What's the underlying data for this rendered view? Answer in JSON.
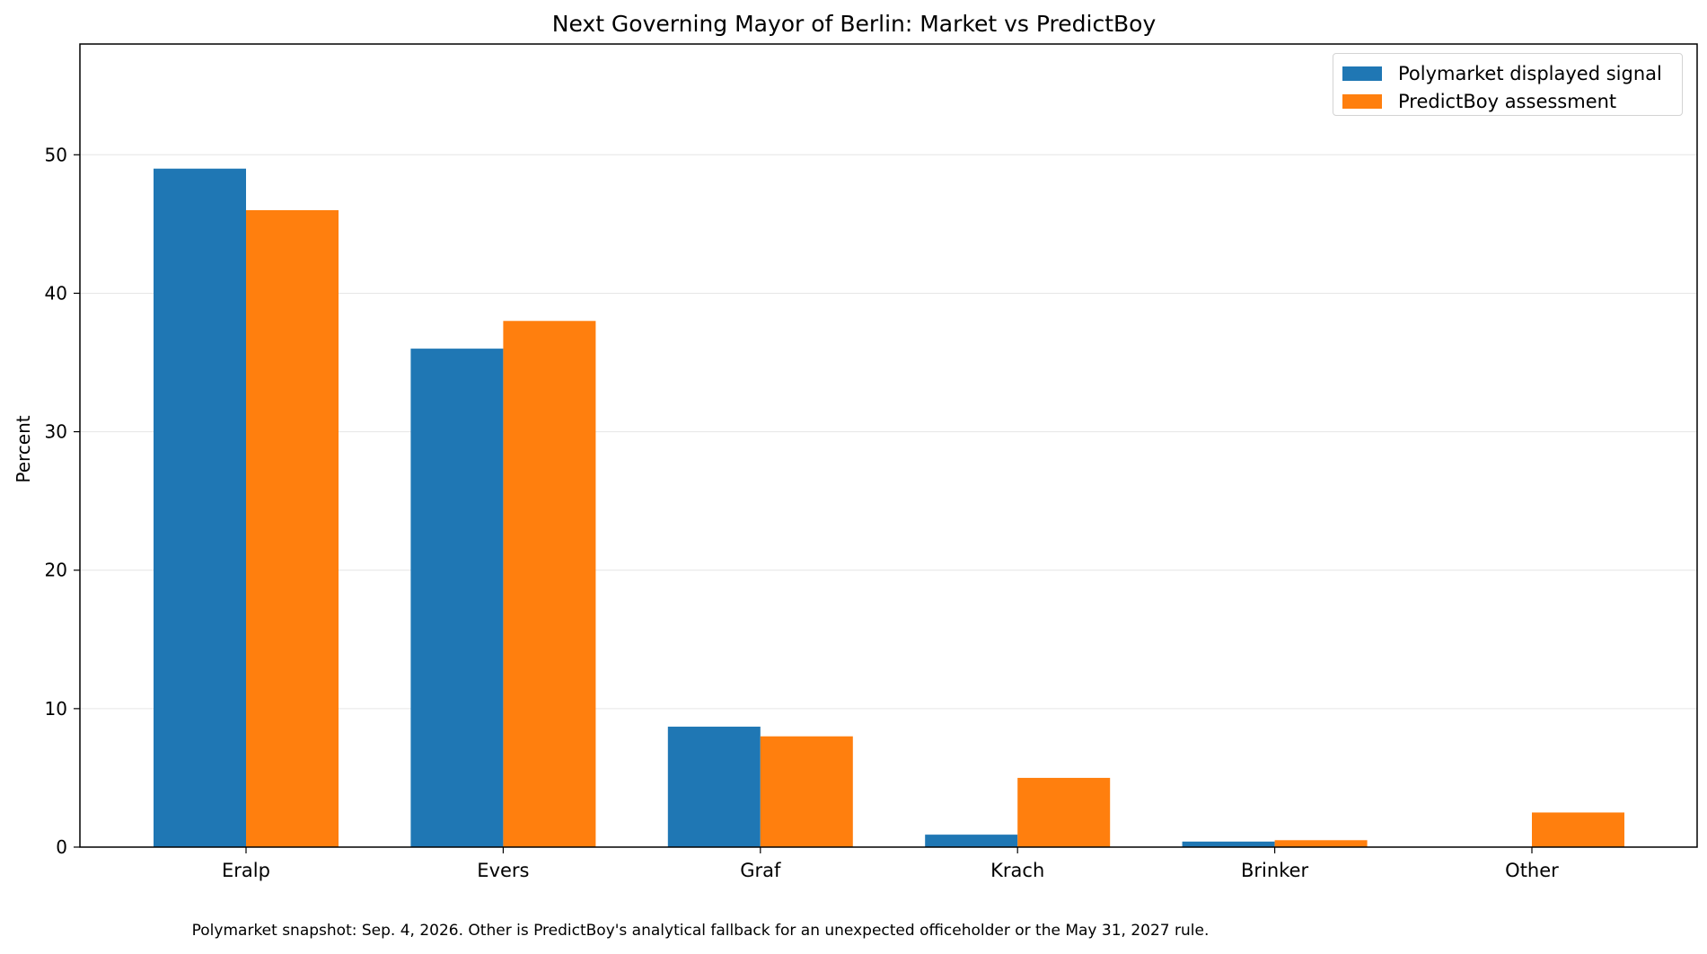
{
  "chart_data": {
    "type": "bar",
    "title": "Next Governing Mayor of Berlin: Market vs PredictBoy",
    "xlabel": "",
    "ylabel": "Percent",
    "categories": [
      "Eralp",
      "Evers",
      "Graf",
      "Krach",
      "Brinker",
      "Other"
    ],
    "series": [
      {
        "name": "Polymarket displayed signal",
        "color": "#1f77b4",
        "values": [
          49,
          36,
          8.7,
          0.9,
          0.4,
          0
        ]
      },
      {
        "name": "PredictBoy assessment",
        "color": "#ff7f0e",
        "values": [
          46,
          38,
          8,
          5,
          0.5,
          2.5
        ]
      }
    ],
    "ylim": [
      0,
      58
    ],
    "yticks": [
      0,
      10,
      20,
      30,
      40,
      50
    ],
    "grid": "horizontal",
    "legend_position": "top-right",
    "footnote": "Polymarket snapshot: Sep. 4, 2026. Other is PredictBoy's analytical fallback for an unexpected officeholder or the May 31, 2027 rule."
  }
}
